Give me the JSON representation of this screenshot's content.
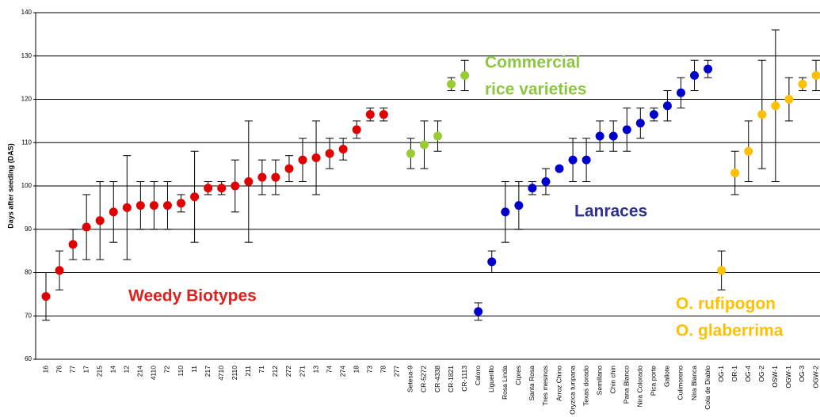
{
  "chart_data": {
    "type": "errorbar-dot",
    "y_label": "Days after seeding (DAS)",
    "ylim": [
      60,
      140
    ],
    "yticks": [
      60,
      70,
      80,
      90,
      100,
      110,
      120,
      130,
      140
    ],
    "grid": true,
    "categories": [
      "16",
      "76",
      "77",
      "17",
      "215",
      "14",
      "12",
      "214",
      "4110",
      "72",
      "110",
      "11",
      "217",
      "4710",
      "2110",
      "211",
      "71",
      "212",
      "272",
      "271",
      "13",
      "74",
      "274",
      "18",
      "73",
      "78",
      "277",
      "Setesa-9",
      "CR-5272",
      "CR-4338",
      "CR-1821",
      "CR-1113",
      "Caloro",
      "Liguerillo",
      "Rosa Linda",
      "Cipres",
      "Santa Rosa",
      "Tres mesinos",
      "Arroz Chino",
      "Oryzica turipana",
      "Texas dorado",
      "Semillano",
      "Chin chin",
      "Pana Blanco",
      "Nira Colorado",
      "Pica porte",
      "Gallote",
      "Culimoreno",
      "Nira Blanca",
      "Cola de Diablo",
      "OG-1",
      "OR-1",
      "OG-4",
      "OG-2",
      "OSW-1",
      "OGW-1",
      "OG-3",
      "OGW-2"
    ],
    "series": [
      {
        "color": "#e00000",
        "values": [
          74.5,
          80.5,
          86.5,
          90.5,
          92,
          94,
          95,
          95.5,
          95.5,
          95.5,
          96,
          97.5,
          99.5,
          99.5,
          100,
          101,
          102,
          102,
          104,
          106,
          106.5,
          107.5,
          108.5,
          113,
          116.5,
          116.5,
          null,
          null,
          null,
          null,
          null,
          null,
          null,
          null,
          null,
          null,
          null,
          null,
          null,
          null,
          null,
          null,
          null,
          null,
          null,
          null,
          null,
          null,
          null,
          null,
          null,
          null,
          null,
          null,
          null,
          null,
          null,
          null
        ],
        "errors": [
          5.5,
          4.5,
          3.5,
          7.5,
          9,
          7,
          12,
          5.5,
          5.5,
          5.5,
          2,
          10.5,
          1.5,
          1.5,
          6,
          14,
          4,
          4,
          3,
          5,
          8.5,
          3.5,
          2.5,
          2,
          1.5,
          1.5,
          null,
          null,
          null,
          null,
          null,
          null,
          null,
          null,
          null,
          null,
          null,
          null,
          null,
          null,
          null,
          null,
          null,
          null,
          null,
          null,
          null,
          null,
          null,
          null,
          null,
          null,
          null,
          null,
          null,
          null,
          null,
          null
        ]
      },
      {
        "color": "#99cc33",
        "values": [
          null,
          null,
          null,
          null,
          null,
          null,
          null,
          null,
          null,
          null,
          null,
          null,
          null,
          null,
          null,
          null,
          null,
          null,
          null,
          null,
          null,
          null,
          null,
          null,
          null,
          null,
          null,
          107.5,
          109.5,
          111.5,
          123.5,
          125.5,
          null,
          null,
          null,
          null,
          null,
          null,
          null,
          null,
          null,
          null,
          null,
          null,
          null,
          null,
          null,
          null,
          null,
          null,
          null,
          null,
          null,
          null,
          null,
          null,
          null,
          null
        ],
        "errors": [
          null,
          null,
          null,
          null,
          null,
          null,
          null,
          null,
          null,
          null,
          null,
          null,
          null,
          null,
          null,
          null,
          null,
          null,
          null,
          null,
          null,
          null,
          null,
          null,
          null,
          null,
          null,
          3.5,
          5.5,
          3.5,
          1.5,
          3.5,
          null,
          null,
          null,
          null,
          null,
          null,
          null,
          null,
          null,
          null,
          null,
          null,
          null,
          null,
          null,
          null,
          null,
          null,
          null,
          null,
          null,
          null,
          null,
          null,
          null,
          null
        ]
      },
      {
        "color": "#0000cc",
        "values": [
          null,
          null,
          null,
          null,
          null,
          null,
          null,
          null,
          null,
          null,
          null,
          null,
          null,
          null,
          null,
          null,
          null,
          null,
          null,
          null,
          null,
          null,
          null,
          null,
          null,
          null,
          null,
          null,
          null,
          null,
          null,
          null,
          71,
          82.5,
          94,
          95.5,
          99.5,
          101,
          104,
          106,
          106,
          111.5,
          111.5,
          113,
          114.5,
          116.5,
          118.5,
          121.5,
          125.5,
          127,
          null,
          null,
          null,
          null,
          null,
          null,
          null,
          null
        ],
        "errors": [
          null,
          null,
          null,
          null,
          null,
          null,
          null,
          null,
          null,
          null,
          null,
          null,
          null,
          null,
          null,
          null,
          null,
          null,
          null,
          null,
          null,
          null,
          null,
          null,
          null,
          null,
          null,
          null,
          null,
          null,
          null,
          null,
          2,
          2.5,
          7,
          5.5,
          1.5,
          3,
          0,
          5,
          5,
          3.5,
          3.5,
          5,
          3.5,
          1.5,
          3.5,
          3.5,
          3.5,
          2,
          null,
          null,
          null,
          null,
          null,
          null,
          null,
          null
        ]
      },
      {
        "color": "#ffc000",
        "values": [
          null,
          null,
          null,
          null,
          null,
          null,
          null,
          null,
          null,
          null,
          null,
          null,
          null,
          null,
          null,
          null,
          null,
          null,
          null,
          null,
          null,
          null,
          null,
          null,
          null,
          null,
          null,
          null,
          null,
          null,
          null,
          null,
          null,
          null,
          null,
          null,
          null,
          null,
          null,
          null,
          null,
          null,
          null,
          null,
          null,
          null,
          null,
          null,
          null,
          null,
          80.5,
          103,
          108,
          116.5,
          118.5,
          120,
          123.5,
          125.5
        ],
        "errors": [
          null,
          null,
          null,
          null,
          null,
          null,
          null,
          null,
          null,
          null,
          null,
          null,
          null,
          null,
          null,
          null,
          null,
          null,
          null,
          null,
          null,
          null,
          null,
          null,
          null,
          null,
          null,
          null,
          null,
          null,
          null,
          null,
          null,
          null,
          null,
          null,
          null,
          null,
          null,
          null,
          null,
          null,
          null,
          null,
          null,
          null,
          null,
          null,
          null,
          null,
          4.5,
          5,
          7,
          12.5,
          17.5,
          5,
          1.5,
          3.5
        ]
      }
    ],
    "annotations": [
      {
        "lines": [
          "Weedy Biotypes"
        ],
        "color": "#e0201c"
      },
      {
        "lines": [
          "Commercial",
          "rice varieties"
        ],
        "color": "#8fc641"
      },
      {
        "lines": [
          "Lanraces"
        ],
        "color": "#2e3192"
      },
      {
        "lines": [
          "O. rufipogon",
          "O. glaberrima"
        ],
        "color": "#ffc000"
      }
    ]
  }
}
